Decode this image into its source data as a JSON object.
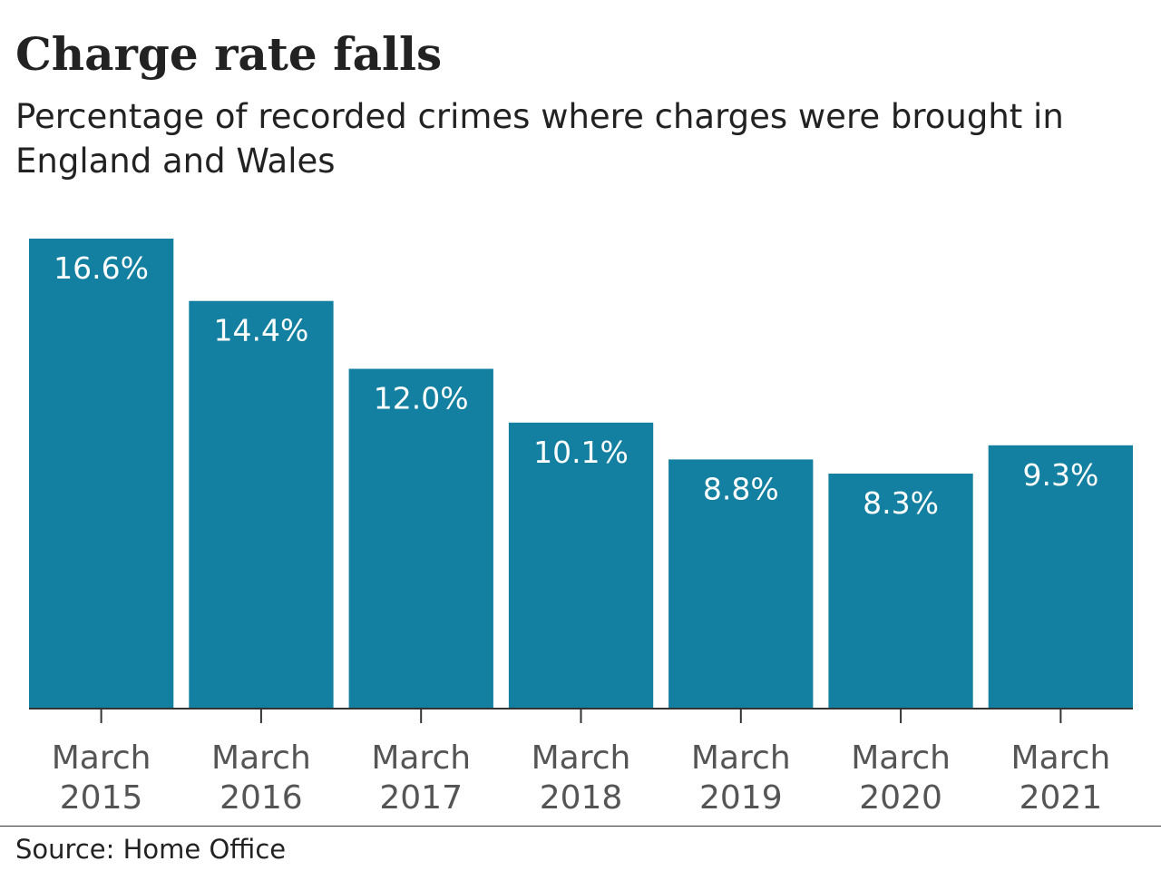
{
  "chart_data": {
    "type": "bar",
    "title": "Charge rate falls",
    "subtitle": "Percentage of recorded crimes where charges were brought in England and Wales",
    "categories": [
      [
        "March",
        "2015"
      ],
      [
        "March",
        "2016"
      ],
      [
        "March",
        "2017"
      ],
      [
        "March",
        "2018"
      ],
      [
        "March",
        "2019"
      ],
      [
        "March",
        "2020"
      ],
      [
        "March",
        "2021"
      ]
    ],
    "values": [
      16.6,
      14.4,
      12.0,
      10.1,
      8.8,
      8.3,
      9.3
    ],
    "data_labels": [
      "16.6%",
      "14.4%",
      "12.0%",
      "10.1%",
      "8.8%",
      "8.3%",
      "9.3%"
    ],
    "xlabel": "",
    "ylabel": "",
    "ylim": [
      0,
      16.6
    ],
    "grid": false,
    "legend": "none",
    "bar_color": "#1380A1",
    "label_color": "#ffffff",
    "axis_color": "#333333"
  },
  "footer": {
    "source": "Source: Home Office"
  }
}
